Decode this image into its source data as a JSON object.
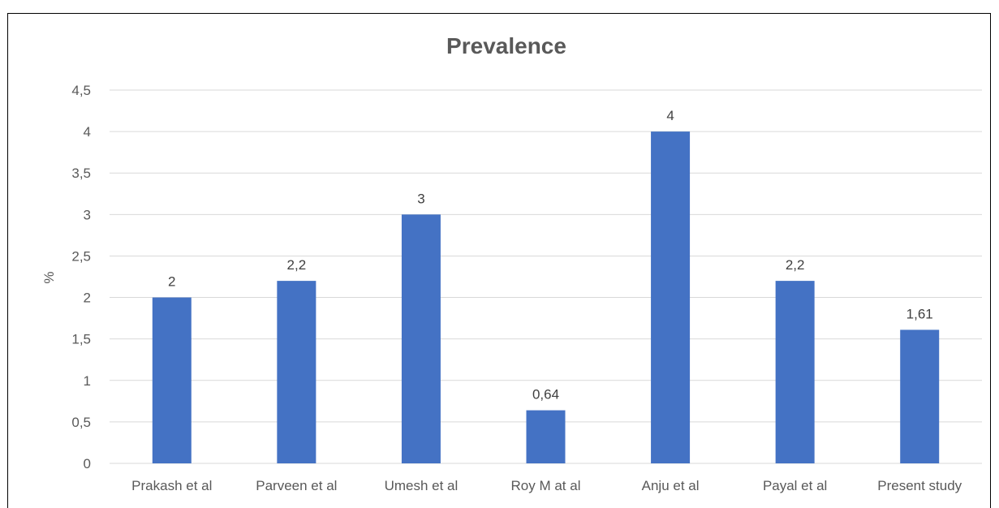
{
  "chart_data": {
    "type": "bar",
    "title": "Prevalence",
    "xlabel": "",
    "ylabel": "%",
    "categories": [
      "Prakash et al",
      "Parveen et al",
      "Umesh et al",
      "Roy M at al",
      "Anju et al",
      "Payal et al",
      "Present study"
    ],
    "values": [
      2,
      2.2,
      3,
      0.64,
      4,
      2.2,
      1.61
    ],
    "data_labels": [
      "2",
      "2,2",
      "3",
      "0,64",
      "4",
      "2,2",
      "1,61"
    ],
    "ylim": [
      0,
      4.5
    ],
    "yticks": [
      0,
      0.5,
      1,
      1.5,
      2,
      2.5,
      3,
      3.5,
      4,
      4.5
    ],
    "ytick_labels": [
      "0",
      "0,5",
      "1",
      "1,5",
      "2",
      "2,5",
      "3",
      "3,5",
      "4",
      "4,5"
    ],
    "grid": true,
    "legend": "none",
    "bar_color": "#4472c4"
  }
}
